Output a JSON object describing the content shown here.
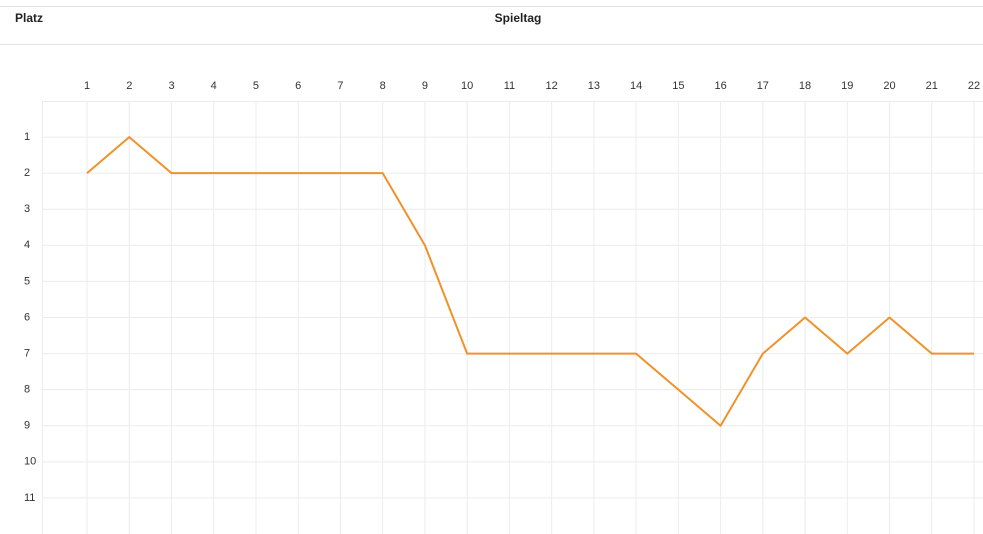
{
  "chart_data": {
    "type": "line",
    "y_label": "Platz",
    "x_label": "Spieltag",
    "x": [
      1,
      2,
      3,
      4,
      5,
      6,
      7,
      8,
      9,
      10,
      11,
      12,
      13,
      14,
      15,
      16,
      17,
      18,
      19,
      20,
      21,
      22
    ],
    "series": [
      {
        "color": "#f0922b",
        "values": [
          2,
          1,
          2,
          2,
          2,
          2,
          2,
          2,
          4,
          7,
          7,
          7,
          7,
          7,
          8,
          9,
          7,
          6,
          7,
          6,
          7,
          7
        ]
      }
    ],
    "xlim": [
      0,
      22
    ],
    "xticks": [
      1,
      2,
      3,
      4,
      5,
      6,
      7,
      8,
      9,
      10,
      11,
      12,
      13,
      14,
      15,
      16,
      17,
      18,
      19,
      20,
      21,
      22
    ],
    "ylim": [
      0,
      12
    ],
    "yticks": [
      1,
      2,
      3,
      4,
      5,
      6,
      7,
      8,
      9,
      10,
      11
    ],
    "y_inverted": true,
    "x_axis_position": "top",
    "grid": true
  }
}
